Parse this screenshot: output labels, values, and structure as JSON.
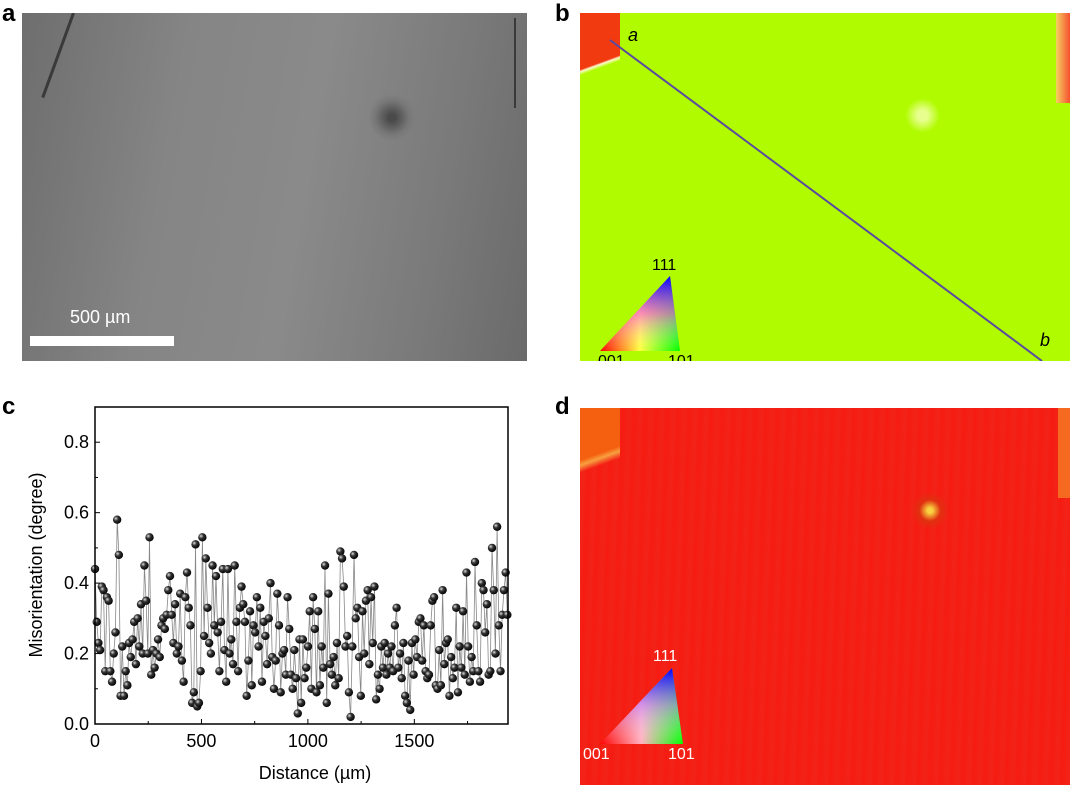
{
  "panels": {
    "a": {
      "label": "a",
      "scale_bar": "500 µm"
    },
    "b": {
      "label": "b",
      "line_start": "a",
      "line_end": "b",
      "ipf": {
        "top": "111",
        "left": "001",
        "right": "101"
      }
    },
    "c": {
      "label": "c"
    },
    "d": {
      "label": "d",
      "ipf": {
        "top": "111",
        "left": "001",
        "right": "101"
      }
    }
  },
  "colors": {
    "b_map": "#b0fb00",
    "d_map": "#f51d12",
    "line": "#5a4aa0"
  },
  "chart_data": {
    "type": "line",
    "title": "",
    "xlabel": "Distance (µm)",
    "ylabel": "Misorientation (degree)",
    "xlim": [
      0,
      1940
    ],
    "ylim": [
      0,
      0.9
    ],
    "xticks": [
      "0",
      "500",
      "1000",
      "1500"
    ],
    "xtick_values": [
      0,
      500,
      1000,
      1500
    ],
    "yticks": [
      "0.0",
      "0.2",
      "0.4",
      "0.6",
      "0.8"
    ],
    "ytick_values": [
      0,
      0.2,
      0.4,
      0.6,
      0.8
    ],
    "x_start": 0,
    "x_end": 1937,
    "values": [
      0.44,
      0.29,
      0.23,
      0.21,
      0.39,
      0.38,
      0.15,
      0.36,
      0.35,
      0.15,
      0.12,
      0.2,
      0.26,
      0.58,
      0.48,
      0.08,
      0.22,
      0.08,
      0.15,
      0.11,
      0.23,
      0.19,
      0.24,
      0.29,
      0.17,
      0.3,
      0.22,
      0.34,
      0.2,
      0.45,
      0.35,
      0.2,
      0.53,
      0.14,
      0.21,
      0.16,
      0.2,
      0.24,
      0.19,
      0.28,
      0.3,
      0.27,
      0.31,
      0.38,
      0.42,
      0.31,
      0.23,
      0.34,
      0.2,
      0.22,
      0.37,
      0.18,
      0.12,
      0.36,
      0.43,
      0.33,
      0.28,
      0.06,
      0.09,
      0.51,
      0.05,
      0.06,
      0.15,
      0.53,
      0.25,
      0.47,
      0.33,
      0.23,
      0.2,
      0.45,
      0.28,
      0.42,
      0.26,
      0.15,
      0.29,
      0.44,
      0.21,
      0.12,
      0.44,
      0.2,
      0.24,
      0.17,
      0.45,
      0.29,
      0.15,
      0.33,
      0.39,
      0.34,
      0.29,
      0.08,
      0.18,
      0.32,
      0.11,
      0.28,
      0.26,
      0.36,
      0.22,
      0.33,
      0.12,
      0.29,
      0.25,
      0.17,
      0.3,
      0.4,
      0.19,
      0.1,
      0.18,
      0.37,
      0.28,
      0.09,
      0.2,
      0.21,
      0.14,
      0.36,
      0.27,
      0.14,
      0.1,
      0.21,
      0.13,
      0.03,
      0.24,
      0.06,
      0.24,
      0.13,
      0.16,
      0.22,
      0.32,
      0.1,
      0.36,
      0.27,
      0.09,
      0.32,
      0.11,
      0.22,
      0.16,
      0.45,
      0.06,
      0.37,
      0.17,
      0.14,
      0.19,
      0.11,
      0.23,
      0.13,
      0.49,
      0.47,
      0.39,
      0.22,
      0.25,
      0.09,
      0.02,
      0.22,
      0.48,
      0.3,
      0.33,
      0.19,
      0.08,
      0.32,
      0.2,
      0.35,
      0.38,
      0.17,
      0.36,
      0.23,
      0.39,
      0.07,
      0.14,
      0.1,
      0.22,
      0.16,
      0.23,
      0.14,
      0.2,
      0.16,
      0.22,
      0.15,
      0.28,
      0.33,
      0.16,
      0.2,
      0.13,
      0.23,
      0.08,
      0.06,
      0.18,
      0.04,
      0.23,
      0.14,
      0.24,
      0.19,
      0.29,
      0.3,
      0.18,
      0.28,
      0.15,
      0.13,
      0.14,
      0.28,
      0.35,
      0.36,
      0.11,
      0.1,
      0.21,
      0.11,
      0.38,
      0.17,
      0.23,
      0.24,
      0.08,
      0.19,
      0.13,
      0.16,
      0.33,
      0.09,
      0.22,
      0.16,
      0.32,
      0.14,
      0.43,
      0.22,
      0.12,
      0.19,
      0.15,
      0.46,
      0.28,
      0.15,
      0.12,
      0.4,
      0.38,
      0.26,
      0.34,
      0.14,
      0.15,
      0.5,
      0.38,
      0.2,
      0.56,
      0.28,
      0.15,
      0.31,
      0.38,
      0.43,
      0.31
    ],
    "grid": false,
    "legend": "none"
  }
}
